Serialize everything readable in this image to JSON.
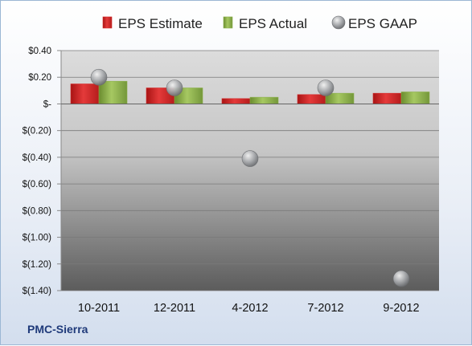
{
  "footer": {
    "company": "PMC-Sierra"
  },
  "colors": {
    "estimate": "#d42a2a",
    "actual": "#8bb04a",
    "gaap": "#a8aaad"
  },
  "chart_data": {
    "type": "bar",
    "categories": [
      "10-2011",
      "12-2011",
      "4-2012",
      "7-2012",
      "9-2012"
    ],
    "series": [
      {
        "name": "EPS Estimate",
        "kind": "bar",
        "values": [
          0.15,
          0.12,
          0.04,
          0.07,
          0.08
        ]
      },
      {
        "name": "EPS Actual",
        "kind": "bar",
        "values": [
          0.17,
          0.12,
          0.05,
          0.08,
          0.09
        ]
      },
      {
        "name": "EPS GAAP",
        "kind": "marker",
        "values": [
          0.2,
          0.12,
          -0.41,
          0.12,
          -1.31
        ]
      }
    ],
    "y_ticks": [
      {
        "value": 0.4,
        "label": "$0.40"
      },
      {
        "value": 0.2,
        "label": "$0.20"
      },
      {
        "value": 0.0,
        "label": "$-"
      },
      {
        "value": -0.2,
        "label": "$(0.20)"
      },
      {
        "value": -0.4,
        "label": "$(0.40)"
      },
      {
        "value": -0.6,
        "label": "$(0.60)"
      },
      {
        "value": -0.8,
        "label": "$(0.80)"
      },
      {
        "value": -1.0,
        "label": "$(1.00)"
      },
      {
        "value": -1.2,
        "label": "$(1.20)"
      },
      {
        "value": -1.4,
        "label": "$(1.40)"
      }
    ],
    "ylim": [
      -1.4,
      0.4
    ],
    "grid": true,
    "legend_position": "top"
  }
}
